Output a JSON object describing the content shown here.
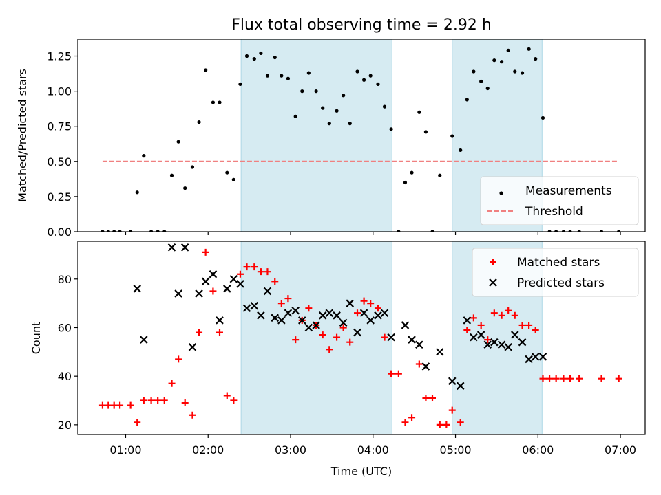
{
  "title": "Flux total observing time = 2.92 h",
  "colors": {
    "shade": "#add8e6",
    "measurement": "#000000",
    "threshold": "#f08080",
    "matched": "#ff0000",
    "predicted": "#000000"
  },
  "chart_data": [
    {
      "type": "scatter",
      "ylabel": "Matched/Predicted stars",
      "xlim": [
        0.42,
        7.3
      ],
      "ylim": [
        0,
        1.37
      ],
      "yticks": [
        0,
        0.25,
        0.5,
        0.75,
        1.0,
        1.25
      ],
      "ytick_labels": [
        "0.00",
        "0.25",
        "0.50",
        "0.75",
        "1.00",
        "1.25"
      ],
      "xticks": [
        1,
        2,
        3,
        4,
        5,
        6,
        7
      ],
      "shaded_intervals": [
        [
          2.4,
          4.23
        ],
        [
          4.96,
          6.05
        ]
      ],
      "legend_position": "lower-right",
      "threshold": {
        "name": "Threshold",
        "y": 0.5,
        "x_range": [
          0.72,
          6.98
        ],
        "style": "dashed"
      },
      "series": [
        {
          "name": "Measurements",
          "marker": "dot",
          "x": [
            0.72,
            0.79,
            0.86,
            0.93,
            1.06,
            1.14,
            1.22,
            1.31,
            1.39,
            1.47,
            1.56,
            1.64,
            1.72,
            1.81,
            1.89,
            1.97,
            2.06,
            2.14,
            2.23,
            2.31,
            2.39,
            2.47,
            2.56,
            2.64,
            2.72,
            2.81,
            2.89,
            2.97,
            3.06,
            3.14,
            3.22,
            3.31,
            3.39,
            3.47,
            3.56,
            3.64,
            3.72,
            3.81,
            3.89,
            3.97,
            4.06,
            4.14,
            4.22,
            4.31,
            4.39,
            4.47,
            4.56,
            4.64,
            4.72,
            4.81,
            4.96,
            5.06,
            5.14,
            5.22,
            5.31,
            5.39,
            5.47,
            5.56,
            5.64,
            5.72,
            5.81,
            5.89,
            5.97,
            6.06,
            6.14,
            6.22,
            6.31,
            6.39,
            6.5,
            6.77,
            6.98
          ],
          "y": [
            0.0,
            0.0,
            0.0,
            0.0,
            0.0,
            0.28,
            0.54,
            0.0,
            0.0,
            0.0,
            0.4,
            0.64,
            0.31,
            0.46,
            0.78,
            1.15,
            0.92,
            0.92,
            0.42,
            0.37,
            1.05,
            1.25,
            1.23,
            1.27,
            1.11,
            1.24,
            1.11,
            1.09,
            0.82,
            1.0,
            1.13,
            1.0,
            0.88,
            0.77,
            0.86,
            0.97,
            0.77,
            1.14,
            1.08,
            1.11,
            1.05,
            0.89,
            0.73,
            0.0,
            0.35,
            0.42,
            0.85,
            0.71,
            0.0,
            0.4,
            0.68,
            0.58,
            0.94,
            1.14,
            1.07,
            1.02,
            1.22,
            1.21,
            1.29,
            1.14,
            1.13,
            1.3,
            1.23,
            0.81,
            0.0,
            0.0,
            0.0,
            0.0,
            0.0,
            0.0,
            0.0
          ]
        }
      ]
    },
    {
      "type": "scatter",
      "xlabel": "Time (UTC)",
      "ylabel": "Count",
      "xlim": [
        0.42,
        7.3
      ],
      "ylim": [
        16,
        95.5
      ],
      "yticks": [
        20,
        40,
        60,
        80
      ],
      "ytick_labels": [
        "20",
        "40",
        "60",
        "80"
      ],
      "xticks": [
        1,
        2,
        3,
        4,
        5,
        6,
        7
      ],
      "xtick_labels": [
        "01:00",
        "02:00",
        "03:00",
        "04:00",
        "05:00",
        "06:00",
        "07:00"
      ],
      "shaded_intervals": [
        [
          2.4,
          4.23
        ],
        [
          4.96,
          6.05
        ]
      ],
      "legend_position": "upper-right",
      "series": [
        {
          "name": "Matched stars",
          "marker": "plus",
          "x": [
            0.72,
            0.79,
            0.86,
            0.93,
            1.06,
            1.14,
            1.22,
            1.31,
            1.39,
            1.47,
            1.56,
            1.64,
            1.72,
            1.81,
            1.89,
            1.97,
            2.06,
            2.14,
            2.23,
            2.31,
            2.39,
            2.47,
            2.56,
            2.64,
            2.72,
            2.81,
            2.89,
            2.97,
            3.06,
            3.14,
            3.22,
            3.31,
            3.39,
            3.47,
            3.56,
            3.64,
            3.72,
            3.81,
            3.89,
            3.97,
            4.06,
            4.14,
            4.22,
            4.31,
            4.39,
            4.47,
            4.56,
            4.64,
            4.72,
            4.81,
            4.89,
            4.96,
            5.06,
            5.14,
            5.22,
            5.31,
            5.39,
            5.47,
            5.56,
            5.64,
            5.72,
            5.81,
            5.89,
            5.97,
            6.06,
            6.14,
            6.22,
            6.31,
            6.39,
            6.5,
            6.77,
            6.98
          ],
          "y": [
            28,
            28,
            28,
            28,
            28,
            21,
            30,
            30,
            30,
            30,
            37,
            47,
            29,
            24,
            58,
            91,
            75,
            58,
            32,
            30,
            82,
            85,
            85,
            83,
            83,
            79,
            70,
            72,
            55,
            63,
            68,
            61,
            57,
            51,
            56,
            60,
            54,
            66,
            71,
            70,
            68,
            56,
            41,
            41,
            21,
            23,
            45,
            31,
            31,
            20,
            20,
            26,
            21,
            59,
            64,
            61,
            55,
            66,
            65,
            67,
            65,
            61,
            61,
            59,
            39,
            39,
            39,
            39,
            39,
            39,
            39,
            39
          ]
        },
        {
          "name": "Predicted stars",
          "marker": "x",
          "x": [
            1.14,
            1.22,
            1.56,
            1.64,
            1.72,
            1.81,
            1.89,
            1.97,
            2.06,
            2.14,
            2.23,
            2.31,
            2.39,
            2.47,
            2.56,
            2.64,
            2.72,
            2.81,
            2.89,
            2.97,
            3.06,
            3.14,
            3.22,
            3.31,
            3.39,
            3.47,
            3.56,
            3.64,
            3.72,
            3.81,
            3.89,
            3.97,
            4.06,
            4.14,
            4.22,
            4.39,
            4.47,
            4.56,
            4.64,
            4.81,
            4.96,
            5.06,
            5.14,
            5.22,
            5.31,
            5.39,
            5.47,
            5.56,
            5.64,
            5.72,
            5.81,
            5.89,
            5.97,
            6.06
          ],
          "y": [
            76,
            55,
            93,
            74,
            93,
            52,
            74,
            79,
            82,
            63,
            76,
            80,
            78,
            68,
            69,
            65,
            75,
            64,
            63,
            66,
            67,
            63,
            60,
            61,
            65,
            66,
            65,
            62,
            70,
            58,
            66,
            63,
            65,
            66,
            56,
            61,
            55,
            53,
            44,
            50,
            38,
            36,
            63,
            56,
            57,
            53,
            54,
            53,
            52,
            57,
            54,
            47,
            48,
            48
          ]
        }
      ]
    }
  ]
}
